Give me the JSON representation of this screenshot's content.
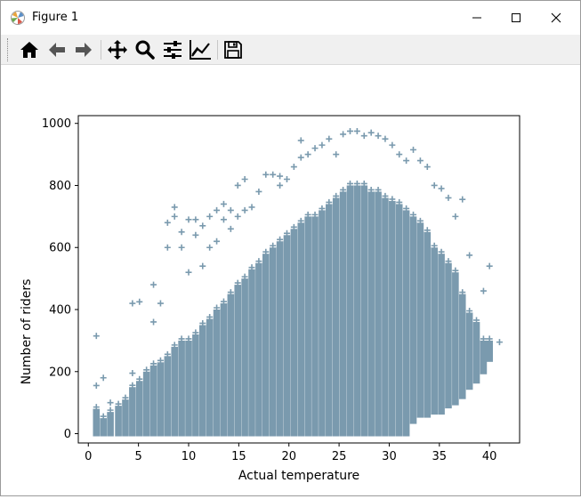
{
  "window": {
    "title": "Figure 1"
  },
  "toolbar": {
    "icons": [
      "home-icon",
      "back-arrow-icon",
      "forward-arrow-icon",
      "pan-icon",
      "zoom-icon",
      "subplots-config-icon",
      "edit-axes-icon",
      "save-icon"
    ]
  },
  "colors": {
    "marker": "#7a9aae",
    "toolbar_bg": "#f0f0f0"
  },
  "chart_data": {
    "type": "scatter",
    "marker": "+",
    "xlabel": "Actual temperature",
    "ylabel": "Number of riders",
    "xlim": [
      -1,
      43
    ],
    "ylim": [
      -30,
      1025
    ],
    "xticks": [
      0,
      5,
      10,
      15,
      20,
      25,
      30,
      35,
      40
    ],
    "yticks": [
      0,
      200,
      400,
      600,
      800,
      1000
    ],
    "grid": false,
    "series": [
      {
        "color": "#7a9aae",
        "columns": [
          {
            "x": 0.8,
            "ymin": 0,
            "ymax": 80,
            "outliers": [
              155,
              315
            ]
          },
          {
            "x": 1.5,
            "ymin": 0,
            "ymax": 50,
            "outliers": [
              180
            ]
          },
          {
            "x": 2.2,
            "ymin": 0,
            "ymax": 70,
            "outliers": [
              100
            ]
          },
          {
            "x": 3.0,
            "ymin": 0,
            "ymax": 90,
            "outliers": []
          },
          {
            "x": 3.7,
            "ymin": 0,
            "ymax": 110,
            "outliers": []
          },
          {
            "x": 4.4,
            "ymin": 0,
            "ymax": 150,
            "outliers": [
              195,
              420
            ]
          },
          {
            "x": 5.1,
            "ymin": 0,
            "ymax": 170,
            "outliers": [
              425
            ]
          },
          {
            "x": 5.8,
            "ymin": 0,
            "ymax": 200,
            "outliers": []
          },
          {
            "x": 6.5,
            "ymin": 0,
            "ymax": 220,
            "outliers": [
              360,
              480
            ]
          },
          {
            "x": 7.2,
            "ymin": 0,
            "ymax": 230,
            "outliers": [
              420
            ]
          },
          {
            "x": 7.9,
            "ymin": 0,
            "ymax": 250,
            "outliers": [
              600,
              680
            ]
          },
          {
            "x": 8.6,
            "ymin": 0,
            "ymax": 280,
            "outliers": [
              700,
              730
            ]
          },
          {
            "x": 9.3,
            "ymin": 0,
            "ymax": 300,
            "outliers": [
              600,
              650
            ]
          },
          {
            "x": 10.0,
            "ymin": 0,
            "ymax": 300,
            "outliers": [
              520,
              690
            ]
          },
          {
            "x": 10.7,
            "ymin": 0,
            "ymax": 320,
            "outliers": [
              640,
              690
            ]
          },
          {
            "x": 11.4,
            "ymin": 0,
            "ymax": 350,
            "outliers": [
              540,
              670
            ]
          },
          {
            "x": 12.1,
            "ymin": 0,
            "ymax": 370,
            "outliers": [
              600,
              700
            ]
          },
          {
            "x": 12.8,
            "ymin": 0,
            "ymax": 400,
            "outliers": [
              620,
              720
            ]
          },
          {
            "x": 13.5,
            "ymin": 0,
            "ymax": 420,
            "outliers": [
              690,
              740
            ]
          },
          {
            "x": 14.2,
            "ymin": 0,
            "ymax": 450,
            "outliers": [
              660,
              720
            ]
          },
          {
            "x": 14.9,
            "ymin": 0,
            "ymax": 480,
            "outliers": [
              700,
              800
            ]
          },
          {
            "x": 15.6,
            "ymin": 0,
            "ymax": 500,
            "outliers": [
              720,
              820
            ]
          },
          {
            "x": 16.3,
            "ymin": 0,
            "ymax": 530,
            "outliers": [
              730
            ]
          },
          {
            "x": 17.0,
            "ymin": 0,
            "ymax": 550,
            "outliers": [
              780
            ]
          },
          {
            "x": 17.7,
            "ymin": 0,
            "ymax": 580,
            "outliers": [
              835
            ]
          },
          {
            "x": 18.4,
            "ymin": 0,
            "ymax": 600,
            "outliers": [
              835
            ]
          },
          {
            "x": 19.1,
            "ymin": 0,
            "ymax": 620,
            "outliers": [
              800,
              830
            ]
          },
          {
            "x": 19.8,
            "ymin": 0,
            "ymax": 640,
            "outliers": [
              820
            ]
          },
          {
            "x": 20.5,
            "ymin": 0,
            "ymax": 660,
            "outliers": [
              860
            ]
          },
          {
            "x": 21.2,
            "ymin": 0,
            "ymax": 680,
            "outliers": [
              890,
              945
            ]
          },
          {
            "x": 21.9,
            "ymin": 0,
            "ymax": 700,
            "outliers": [
              900
            ]
          },
          {
            "x": 22.6,
            "ymin": 0,
            "ymax": 700,
            "outliers": [
              920
            ]
          },
          {
            "x": 23.3,
            "ymin": 0,
            "ymax": 720,
            "outliers": [
              930
            ]
          },
          {
            "x": 24.0,
            "ymin": 0,
            "ymax": 740,
            "outliers": [
              950
            ]
          },
          {
            "x": 24.7,
            "ymin": 0,
            "ymax": 760,
            "outliers": [
              900
            ]
          },
          {
            "x": 25.4,
            "ymin": 0,
            "ymax": 780,
            "outliers": [
              965
            ]
          },
          {
            "x": 26.1,
            "ymin": 0,
            "ymax": 800,
            "outliers": [
              975
            ]
          },
          {
            "x": 26.8,
            "ymin": 0,
            "ymax": 800,
            "outliers": [
              975
            ]
          },
          {
            "x": 27.5,
            "ymin": 0,
            "ymax": 800,
            "outliers": [
              960
            ]
          },
          {
            "x": 28.2,
            "ymin": 0,
            "ymax": 780,
            "outliers": [
              970
            ]
          },
          {
            "x": 28.9,
            "ymin": 0,
            "ymax": 780,
            "outliers": [
              960
            ]
          },
          {
            "x": 29.6,
            "ymin": 0,
            "ymax": 760,
            "outliers": [
              950
            ]
          },
          {
            "x": 30.3,
            "ymin": 0,
            "ymax": 750,
            "outliers": [
              930
            ]
          },
          {
            "x": 31.0,
            "ymin": 0,
            "ymax": 740,
            "outliers": [
              900
            ]
          },
          {
            "x": 31.7,
            "ymin": 0,
            "ymax": 720,
            "outliers": [
              880
            ]
          },
          {
            "x": 32.4,
            "ymin": 40,
            "ymax": 700,
            "outliers": [
              915
            ]
          },
          {
            "x": 33.1,
            "ymin": 60,
            "ymax": 680,
            "outliers": [
              880
            ]
          },
          {
            "x": 33.8,
            "ymin": 60,
            "ymax": 650,
            "outliers": [
              860
            ]
          },
          {
            "x": 34.5,
            "ymin": 70,
            "ymax": 600,
            "outliers": [
              800
            ]
          },
          {
            "x": 35.2,
            "ymin": 70,
            "ymax": 580,
            "outliers": [
              790
            ]
          },
          {
            "x": 35.9,
            "ymin": 90,
            "ymax": 550,
            "outliers": [
              760
            ]
          },
          {
            "x": 36.6,
            "ymin": 100,
            "ymax": 520,
            "outliers": [
              700
            ]
          },
          {
            "x": 37.3,
            "ymin": 120,
            "ymax": 450,
            "outliers": [
              755
            ]
          },
          {
            "x": 38.0,
            "ymin": 150,
            "ymax": 390,
            "outliers": [
              575
            ]
          },
          {
            "x": 38.7,
            "ymin": 170,
            "ymax": 360,
            "outliers": []
          },
          {
            "x": 39.4,
            "ymin": 200,
            "ymax": 300,
            "outliers": [
              460
            ]
          },
          {
            "x": 40.0,
            "ymin": 240,
            "ymax": 300,
            "outliers": [
              540
            ]
          },
          {
            "x": 41.0,
            "ymin": 295,
            "ymax": 295,
            "outliers": []
          }
        ]
      }
    ]
  }
}
